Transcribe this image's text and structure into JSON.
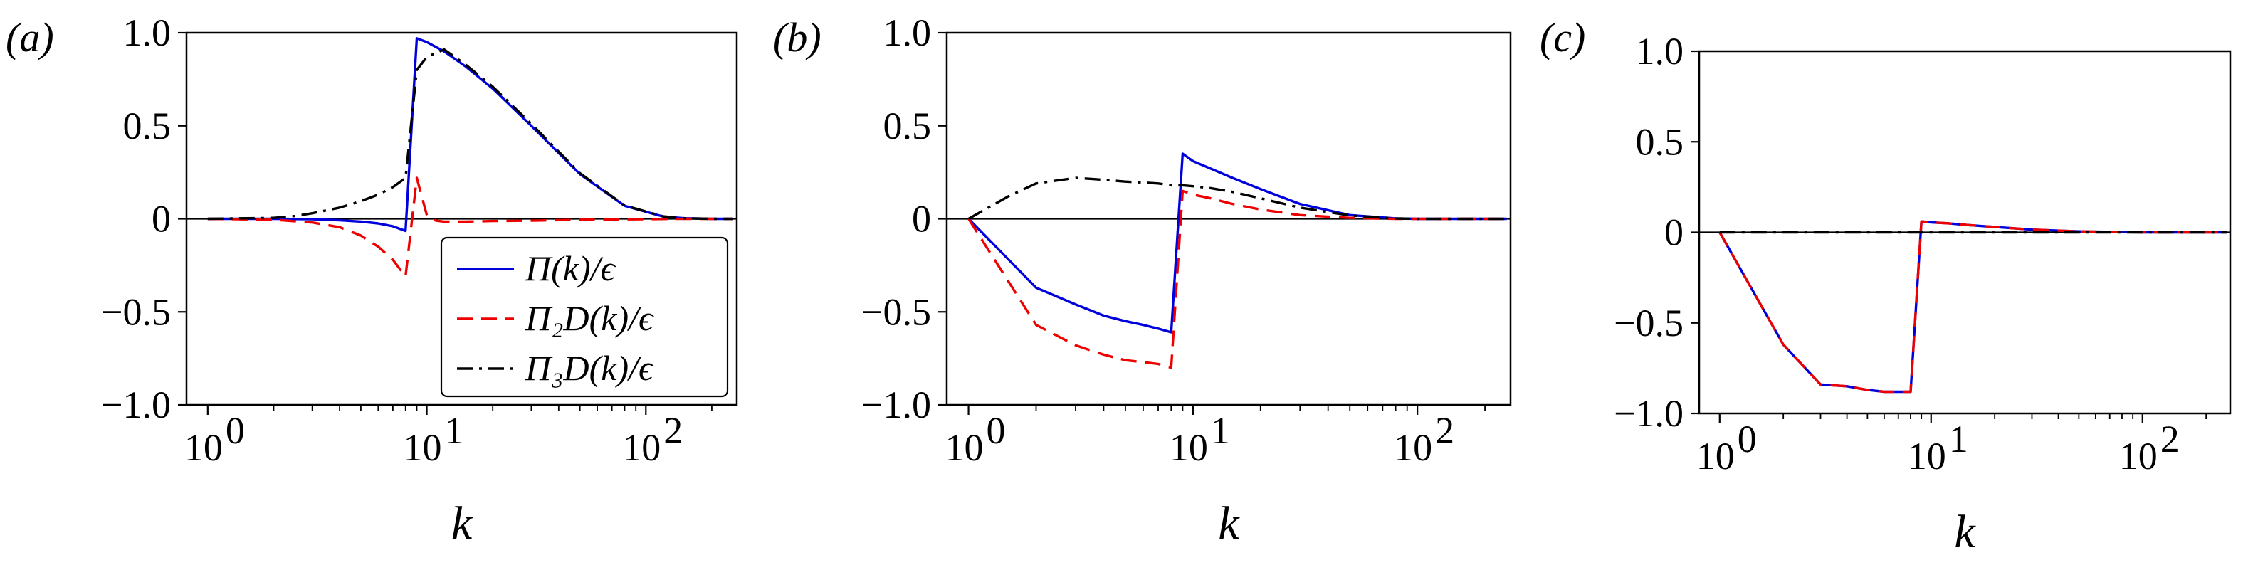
{
  "chart_data": [
    {
      "panel": "(a)",
      "type": "line",
      "xlabel": "k",
      "xscale": "log",
      "xlim": [
        0.8,
        260
      ],
      "ylim": [
        -1.0,
        1.0
      ],
      "xticks": [
        1,
        10,
        100
      ],
      "xtick_labels": [
        "10",
        "10",
        "10"
      ],
      "xtick_exponents": [
        "0",
        "1",
        "2"
      ],
      "yticks": [
        1.0,
        0.5,
        0,
        -0.5,
        -1.0
      ],
      "ytick_labels": [
        "1.0",
        "0.5",
        "0",
        "−0.5",
        "−1.0"
      ],
      "zero_line": true,
      "legend": {
        "position": "lower-right",
        "entries": [
          "Π(k)/ϵ",
          "Π₂D(k)/ϵ",
          "Π₃D(k)/ϵ"
        ]
      },
      "series": [
        {
          "name": "Π(k)/ϵ",
          "color": "#0000dd",
          "dash": "solid",
          "x": [
            1,
            2,
            3,
            4,
            5,
            6,
            7,
            8,
            9,
            10,
            12,
            15,
            20,
            30,
            50,
            80,
            120,
            150,
            200,
            250
          ],
          "y": [
            0,
            0,
            -0.002,
            -0.008,
            -0.015,
            -0.025,
            -0.04,
            -0.065,
            0.97,
            0.95,
            0.9,
            0.82,
            0.7,
            0.5,
            0.24,
            0.07,
            0.012,
            0.003,
            0,
            0
          ]
        },
        {
          "name": "Π₂D(k)/ϵ",
          "color": "#ee0000",
          "dash": "dashed",
          "x": [
            1,
            2,
            3,
            4,
            5,
            6,
            7,
            8,
            9,
            10,
            11,
            12,
            15,
            20,
            30,
            50,
            100,
            150,
            200,
            250
          ],
          "y": [
            0,
            -0.005,
            -0.02,
            -0.045,
            -0.09,
            -0.15,
            -0.22,
            -0.31,
            0.22,
            0.02,
            -0.01,
            -0.015,
            -0.015,
            -0.012,
            -0.01,
            -0.005,
            -0.002,
            0,
            0,
            0
          ]
        },
        {
          "name": "Π₃D(k)/ϵ",
          "color": "#000000",
          "dash": "dashdot",
          "x": [
            1,
            2,
            2.5,
            3,
            4,
            5,
            6,
            7,
            8,
            9,
            10,
            12,
            15,
            20,
            30,
            50,
            80,
            120,
            150,
            200,
            250
          ],
          "y": [
            0,
            0.005,
            0.015,
            0.03,
            0.06,
            0.095,
            0.13,
            0.17,
            0.22,
            0.8,
            0.87,
            0.91,
            0.83,
            0.71,
            0.51,
            0.245,
            0.072,
            0.013,
            0.003,
            0,
            0
          ]
        }
      ]
    },
    {
      "panel": "(b)",
      "type": "line",
      "xlabel": "k",
      "xscale": "log",
      "xlim": [
        0.8,
        260
      ],
      "ylim": [
        -1.0,
        1.0
      ],
      "xticks": [
        1,
        10,
        100
      ],
      "xtick_labels": [
        "10",
        "10",
        "10"
      ],
      "xtick_exponents": [
        "0",
        "1",
        "2"
      ],
      "yticks": [
        1.0,
        0.5,
        0,
        -0.5,
        -1.0
      ],
      "ytick_labels": [
        "1.0",
        "0.5",
        "0",
        "−0.5",
        "−1.0"
      ],
      "zero_line": true,
      "series": [
        {
          "name": "",
          "color": "#0000dd",
          "dash": "solid",
          "x": [
            1,
            2,
            3,
            4,
            5,
            6,
            7,
            8,
            9,
            10,
            12,
            15,
            20,
            30,
            50,
            80,
            100,
            150,
            250
          ],
          "y": [
            0,
            -0.37,
            -0.46,
            -0.52,
            -0.55,
            -0.57,
            -0.59,
            -0.61,
            0.35,
            0.31,
            0.27,
            0.22,
            0.16,
            0.08,
            0.02,
            0.002,
            0,
            0,
            0
          ]
        },
        {
          "name": "",
          "color": "#ee0000",
          "dash": "dashed",
          "x": [
            1,
            2,
            3,
            4,
            5,
            6,
            7,
            8,
            9,
            10,
            12,
            15,
            20,
            30,
            50,
            80,
            100,
            150,
            250
          ],
          "y": [
            0,
            -0.57,
            -0.68,
            -0.73,
            -0.76,
            -0.77,
            -0.78,
            -0.8,
            0.15,
            0.13,
            0.11,
            0.08,
            0.05,
            0.02,
            0.005,
            0,
            0,
            0,
            0
          ]
        },
        {
          "name": "",
          "color": "#000000",
          "dash": "dashdot",
          "x": [
            1,
            1.5,
            2,
            3,
            4,
            5,
            6,
            7,
            8,
            9,
            10,
            12,
            15,
            20,
            30,
            50,
            80,
            100,
            150,
            250
          ],
          "y": [
            0,
            0.12,
            0.19,
            0.22,
            0.21,
            0.2,
            0.195,
            0.19,
            0.18,
            0.18,
            0.175,
            0.165,
            0.145,
            0.11,
            0.06,
            0.018,
            0.002,
            0,
            0,
            0
          ]
        }
      ]
    },
    {
      "panel": "(c)",
      "type": "line",
      "xlabel": "k",
      "xscale": "log",
      "xlim": [
        0.8,
        260
      ],
      "ylim": [
        -1.0,
        1.0
      ],
      "xticks": [
        1,
        10,
        100
      ],
      "xtick_labels": [
        "10",
        "10",
        "10"
      ],
      "xtick_exponents": [
        "0",
        "1",
        "2"
      ],
      "yticks": [
        1.0,
        0.5,
        0,
        -0.5,
        -1.0
      ],
      "ytick_labels": [
        "1.0",
        "0.5",
        "0",
        "−0.5",
        "−1.0"
      ],
      "zero_line": true,
      "series": [
        {
          "name": "",
          "color": "#0000dd",
          "dash": "solid",
          "x": [
            1,
            2,
            3,
            4,
            5,
            6,
            7,
            8,
            9,
            10,
            12,
            15,
            20,
            30,
            50,
            100,
            250
          ],
          "y": [
            0,
            -0.62,
            -0.84,
            -0.85,
            -0.87,
            -0.88,
            -0.88,
            -0.88,
            0.06,
            0.055,
            0.05,
            0.04,
            0.03,
            0.015,
            0.005,
            0,
            0
          ]
        },
        {
          "name": "",
          "color": "#ee0000",
          "dash": "dashed",
          "x": [
            1,
            2,
            3,
            4,
            5,
            6,
            7,
            8,
            9,
            10,
            12,
            15,
            20,
            30,
            50,
            100,
            250
          ],
          "y": [
            0,
            -0.62,
            -0.84,
            -0.85,
            -0.87,
            -0.88,
            -0.88,
            -0.88,
            0.06,
            0.055,
            0.05,
            0.04,
            0.03,
            0.015,
            0.005,
            0,
            0
          ]
        },
        {
          "name": "",
          "color": "#000000",
          "dash": "dashdot",
          "x": [
            1,
            10,
            100,
            250
          ],
          "y": [
            0,
            0,
            0,
            0
          ]
        }
      ]
    }
  ]
}
